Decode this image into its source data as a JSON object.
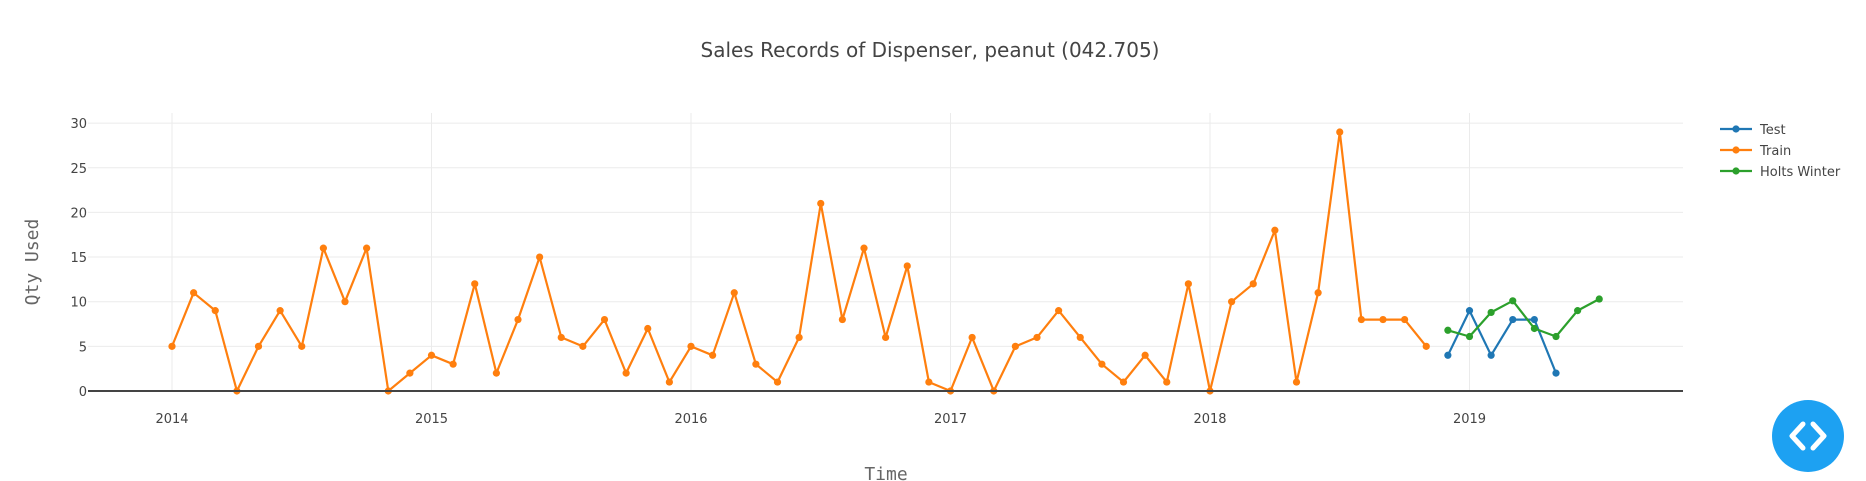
{
  "chart_data": {
    "type": "line",
    "title": "Sales Records of Dispenser, peanut  (042.705)",
    "xlabel": "Time",
    "ylabel": "Qty Used",
    "ylim": [
      0,
      31
    ],
    "yticks": [
      0,
      5,
      10,
      15,
      20,
      25,
      30
    ],
    "xticks": [
      "2014",
      "2015",
      "2016",
      "2017",
      "2018",
      "2019"
    ],
    "grid": true,
    "legend_position": "top-right",
    "series": [
      {
        "name": "Test",
        "color": "#1f77b4",
        "x": [
          "2018-12",
          "2019-01",
          "2019-02",
          "2019-03",
          "2019-04",
          "2019-05"
        ],
        "values": [
          4,
          9,
          4,
          8,
          8,
          2
        ]
      },
      {
        "name": "Train",
        "color": "#ff7f0e",
        "x": [
          "2014-01",
          "2014-02",
          "2014-03",
          "2014-04",
          "2014-05",
          "2014-06",
          "2014-07",
          "2014-08",
          "2014-09",
          "2014-10",
          "2014-11",
          "2014-12",
          "2015-01",
          "2015-02",
          "2015-03",
          "2015-04",
          "2015-05",
          "2015-06",
          "2015-07",
          "2015-08",
          "2015-09",
          "2015-10",
          "2015-11",
          "2015-12",
          "2016-01",
          "2016-02",
          "2016-03",
          "2016-04",
          "2016-05",
          "2016-06",
          "2016-07",
          "2016-08",
          "2016-09",
          "2016-10",
          "2016-11",
          "2016-12",
          "2017-01",
          "2017-02",
          "2017-03",
          "2017-04",
          "2017-05",
          "2017-06",
          "2017-07",
          "2017-08",
          "2017-09",
          "2017-10",
          "2017-11",
          "2017-12",
          "2018-01",
          "2018-02",
          "2018-03",
          "2018-04",
          "2018-05",
          "2018-06",
          "2018-07",
          "2018-08",
          "2018-09",
          "2018-10",
          "2018-11"
        ],
        "values": [
          5,
          11,
          9,
          0,
          5,
          9,
          5,
          16,
          10,
          16,
          0,
          2,
          4,
          3,
          12,
          2,
          8,
          15,
          6,
          5,
          8,
          2,
          7,
          1,
          5,
          4,
          11,
          3,
          1,
          6,
          21,
          8,
          16,
          6,
          14,
          1,
          0,
          6,
          0,
          5,
          6,
          9,
          6,
          3,
          1,
          4,
          1,
          12,
          0,
          10,
          12,
          18,
          1,
          11,
          29,
          8,
          8,
          8,
          5
        ]
      },
      {
        "name": "Holts Winter",
        "color": "#2ca02c",
        "x": [
          "2018-12",
          "2019-01",
          "2019-02",
          "2019-03",
          "2019-04",
          "2019-05",
          "2019-06",
          "2019-07"
        ],
        "values": [
          6.8,
          6.1,
          8.8,
          10.1,
          7.0,
          6.1,
          9.0,
          10.3
        ]
      }
    ]
  },
  "controls": {
    "code_button_icon": "code-icon"
  }
}
